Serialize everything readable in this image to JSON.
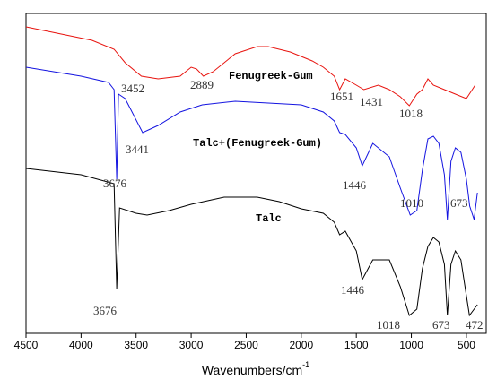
{
  "chart_data": {
    "type": "line",
    "xlabel": "Wavenumbers/cm",
    "xlabel_superscript": "-1",
    "xlim": [
      4500,
      320
    ],
    "xticks": [
      4500,
      4000,
      3500,
      3000,
      2500,
      2000,
      1500,
      1000,
      500
    ],
    "ylim": [
      0,
      357
    ],
    "series": [
      {
        "name": "Fenugreek-Gum",
        "color": "#e8140f",
        "x": [
          4500,
          3900,
          3700,
          3600,
          3452,
          3300,
          3100,
          3000,
          2950,
          2889,
          2800,
          2600,
          2400,
          2300,
          2100,
          1900,
          1800,
          1700,
          1651,
          1600,
          1500,
          1431,
          1300,
          1200,
          1100,
          1018,
          950,
          900,
          850,
          800,
          700,
          600,
          500,
          420
        ],
        "values": [
          342,
          327,
          317,
          302,
          287,
          284,
          287,
          297,
          295,
          287,
          292,
          312,
          320,
          320,
          314,
          304,
          297,
          287,
          272,
          284,
          277,
          272,
          277,
          272,
          264,
          254,
          267,
          272,
          284,
          277,
          272,
          267,
          262,
          277
        ]
      },
      {
        "name": "Talc+(Fenugreek-Gum)",
        "color": "#1414e0",
        "x": [
          4500,
          4000,
          3750,
          3700,
          3676,
          3660,
          3600,
          3441,
          3300,
          3100,
          2900,
          2600,
          2300,
          2000,
          1800,
          1700,
          1651,
          1600,
          1500,
          1446,
          1350,
          1200,
          1100,
          1010,
          950,
          900,
          850,
          800,
          750,
          700,
          673,
          640,
          600,
          550,
          500,
          470,
          430,
          400
        ],
        "values": [
          297,
          287,
          280,
          272,
          172,
          267,
          262,
          224,
          232,
          247,
          255,
          259,
          257,
          255,
          247,
          237,
          224,
          222,
          207,
          187,
          212,
          197,
          162,
          132,
          137,
          182,
          217,
          220,
          212,
          177,
          127,
          192,
          207,
          202,
          172,
          142,
          127,
          157
        ]
      },
      {
        "name": "Talc",
        "color": "#000000",
        "x": [
          4500,
          4000,
          3700,
          3676,
          3650,
          3500,
          3400,
          3200,
          3000,
          2700,
          2400,
          2200,
          2000,
          1800,
          1700,
          1651,
          1600,
          1500,
          1446,
          1350,
          1200,
          1100,
          1018,
          950,
          900,
          850,
          800,
          750,
          700,
          673,
          640,
          600,
          550,
          500,
          472,
          430,
          400
        ],
        "values": [
          184,
          177,
          167,
          50,
          140,
          134,
          132,
          137,
          144,
          152,
          152,
          147,
          139,
          134,
          124,
          110,
          114,
          92,
          60,
          82,
          82,
          52,
          20,
          27,
          72,
          97,
          107,
          102,
          77,
          20,
          77,
          92,
          82,
          42,
          20,
          27,
          32
        ]
      }
    ],
    "annotations": [
      "3452",
      "2889",
      "1651",
      "1431",
      "1018",
      "3441",
      "3676",
      "1446",
      "1010",
      "673",
      "3676",
      "1446",
      "1018",
      "673",
      "472"
    ]
  }
}
